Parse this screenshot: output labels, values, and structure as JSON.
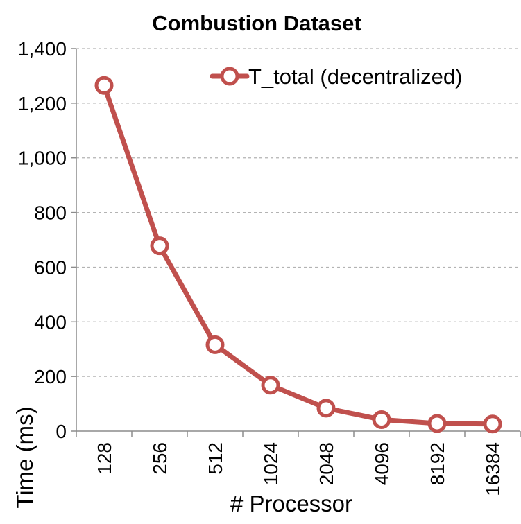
{
  "chart_data": {
    "type": "line",
    "title": "Combustion Dataset",
    "xlabel": "# Processor",
    "ylabel": "Time (ms)",
    "categories": [
      "128",
      "256",
      "512",
      "1024",
      "2048",
      "4096",
      "8192",
      "16384"
    ],
    "series": [
      {
        "name": "T_total (decentralized)",
        "values": [
          1265,
          678,
          316,
          168,
          84,
          42,
          28,
          26
        ],
        "color": "#c0504d",
        "marker": "hollow-circle"
      }
    ],
    "ylim": [
      0,
      1400
    ],
    "yticks": [
      0,
      200,
      400,
      600,
      800,
      1000,
      1200,
      1400
    ],
    "ytick_labels": [
      "0",
      "200",
      "400",
      "600",
      "800",
      "1,000",
      "1,200",
      "1,400"
    ],
    "grid": "horizontal-dashed",
    "legend_position": "top-right"
  }
}
